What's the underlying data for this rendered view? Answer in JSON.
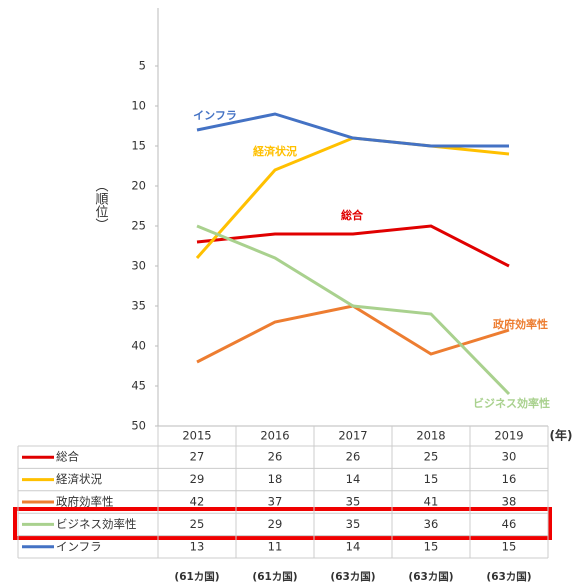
{
  "chart_data": {
    "type": "line",
    "y_axis_label": "（順位）",
    "x_unit": "(年)",
    "categories": [
      "2015",
      "2016",
      "2017",
      "2018",
      "2019"
    ],
    "footnotes": [
      "(61カ国)",
      "(61カ国)",
      "(63カ国)",
      "(63カ国)",
      "(63カ国)"
    ],
    "ylim": [
      0,
      50
    ],
    "yticks": [
      5,
      10,
      15,
      20,
      25,
      30,
      35,
      40,
      45,
      50
    ],
    "y_inverted": true,
    "series": [
      {
        "name": "総合",
        "color": "#e00000",
        "values": [
          27,
          26,
          26,
          25,
          30
        ]
      },
      {
        "name": "経済状況",
        "color": "#ffc000",
        "values": [
          29,
          18,
          14,
          15,
          16
        ]
      },
      {
        "name": "政府効率性",
        "color": "#ed7d31",
        "values": [
          42,
          37,
          35,
          41,
          38
        ]
      },
      {
        "name": "ビジネス効率性",
        "color": "#a9d18e",
        "values": [
          25,
          29,
          35,
          36,
          46
        ]
      },
      {
        "name": "インフラ",
        "color": "#4472c4",
        "values": [
          13,
          11,
          14,
          15,
          15
        ]
      }
    ]
  }
}
